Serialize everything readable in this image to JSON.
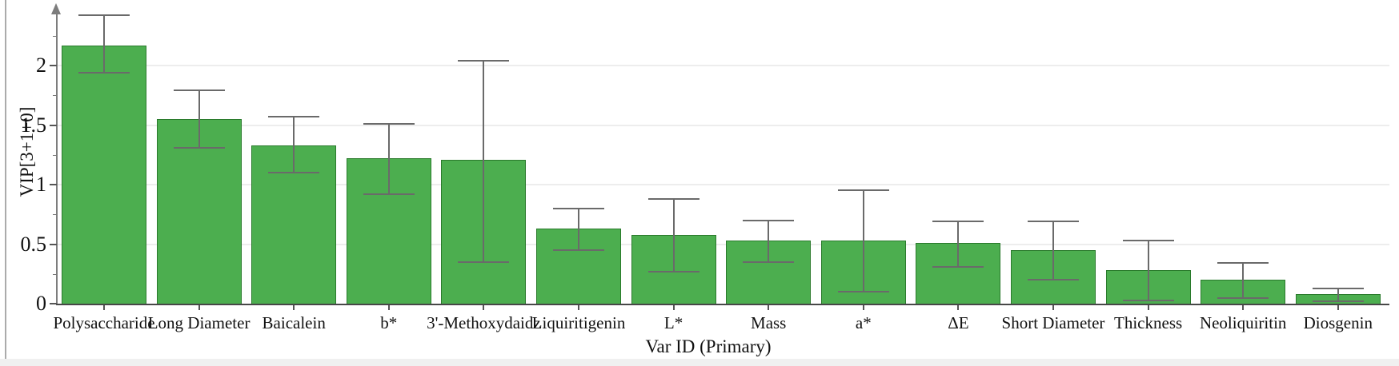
{
  "chart_data": {
    "type": "bar",
    "title": "",
    "xlabel": "Var ID (Primary)",
    "ylabel": "VIP[3+1+0]",
    "ylim": [
      0,
      2.5
    ],
    "grid": "horizontal-major",
    "legend_position": "none",
    "bar_color_hex": "#4cae4f",
    "ytick_labels": [
      "0",
      "0.5",
      "1",
      "1.5",
      "2"
    ],
    "yticks_major": [
      0,
      0.5,
      1,
      1.5,
      2
    ],
    "yticks_minor": [
      0.25,
      0.75,
      1.25,
      1.75,
      2.25
    ],
    "gridline_values": [
      0.5,
      1,
      1.5,
      2
    ],
    "categories": [
      "Polysaccharide",
      "Long Diameter",
      "Baicalein",
      "b*",
      "3'-Methoxydaidz",
      "Liquiritigenin",
      "L*",
      "Mass",
      "a*",
      "ΔE",
      "Short Diameter",
      "Thickness",
      "Neoliquiritin",
      "Diosgenin"
    ],
    "series": [
      {
        "name": "VIP",
        "values": [
          2.17,
          1.55,
          1.33,
          1.22,
          1.21,
          0.63,
          0.58,
          0.53,
          0.53,
          0.51,
          0.45,
          0.28,
          0.2,
          0.08
        ],
        "error_high": [
          2.42,
          1.79,
          1.57,
          1.51,
          2.04,
          0.8,
          0.88,
          0.7,
          0.95,
          0.69,
          0.69,
          0.53,
          0.34,
          0.13
        ],
        "error_low": [
          1.94,
          1.31,
          1.1,
          0.92,
          0.35,
          0.45,
          0.27,
          0.35,
          0.1,
          0.31,
          0.2,
          0.03,
          0.05,
          0.02
        ]
      }
    ]
  },
  "style": {
    "bar_fill": "#4cae4f",
    "bar_border": "#2a7a2c",
    "error_color": "#6a6a6a",
    "grid_color": "#ededed",
    "baseline_color": "#474747",
    "yaxis_color": "#7d7d7d",
    "text_color": "#111111",
    "frame_line": "#ababab",
    "bottom_strip": "#f0f0f0",
    "background": "#ffffff"
  }
}
